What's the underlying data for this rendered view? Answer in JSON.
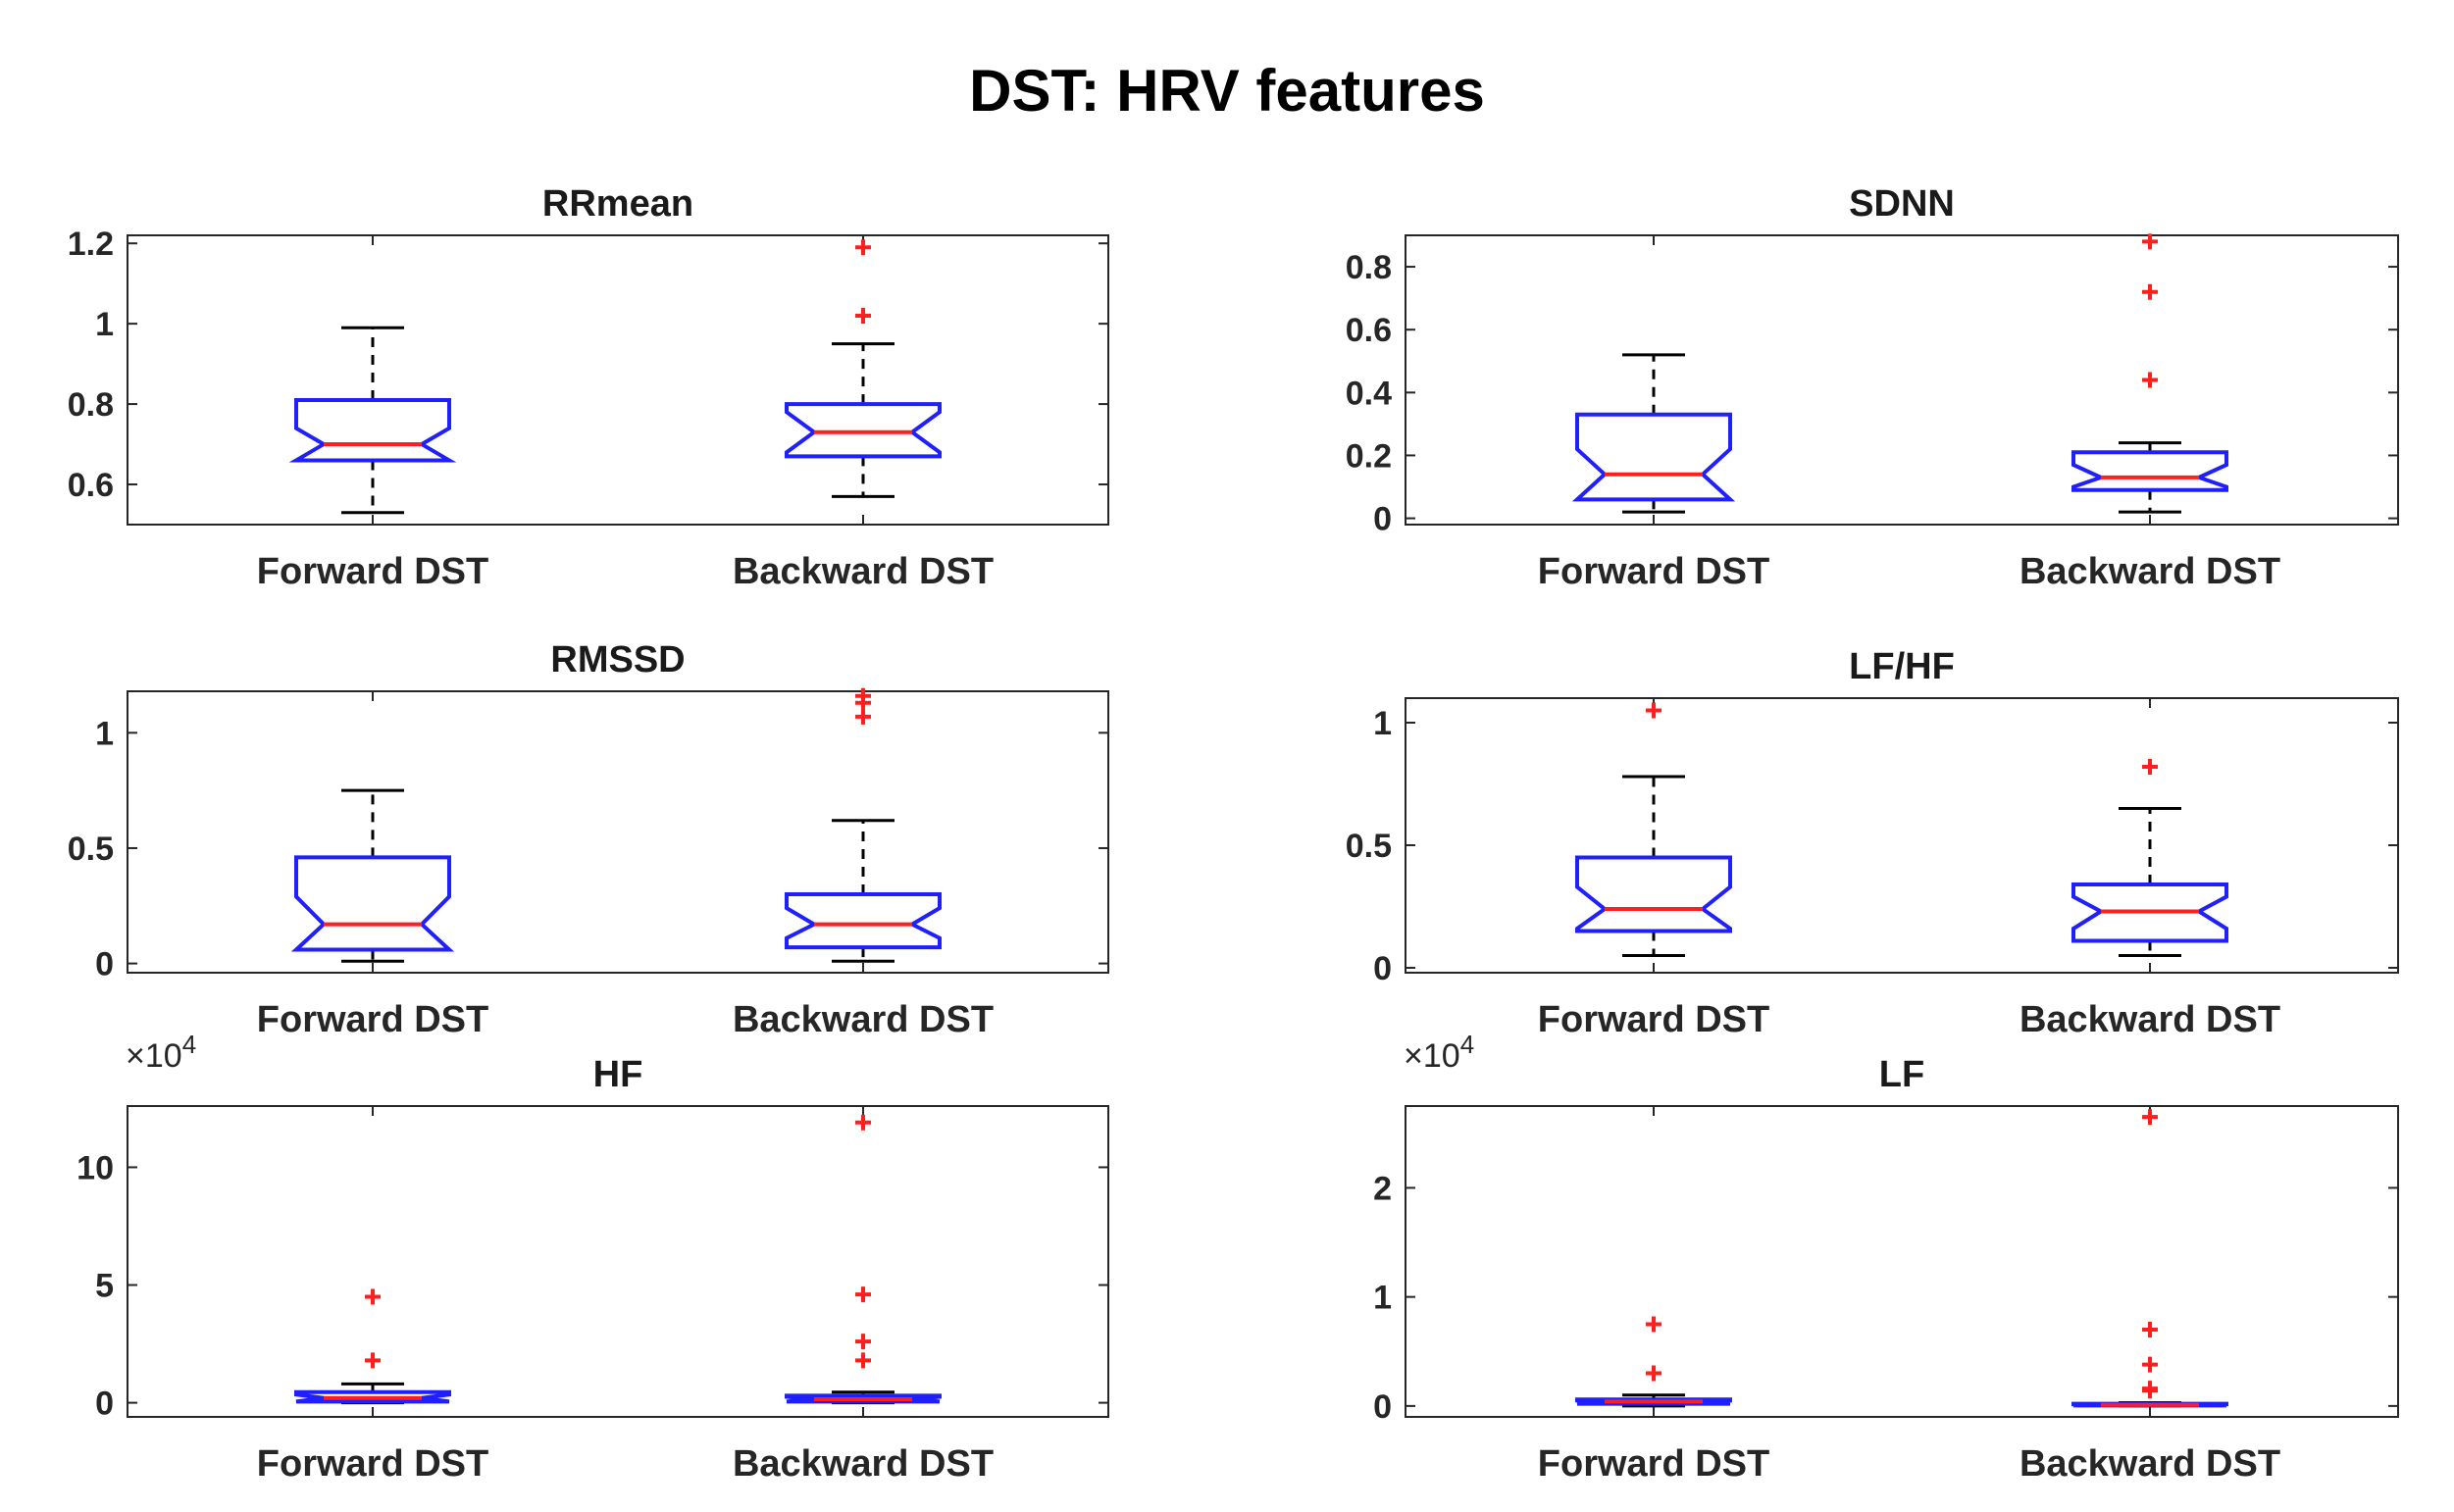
{
  "title": "DST: HRV features",
  "chart_data": [
    {
      "type": "boxplot",
      "title": "RRmean",
      "categories": [
        "Forward DST",
        "Backward DST"
      ],
      "ylim": [
        0.5,
        1.22
      ],
      "yticks": [
        0.6,
        0.8,
        1,
        1.2
      ],
      "ytick_labels": [
        "0.6",
        "0.8",
        "1",
        "1.2"
      ],
      "multiplier": "",
      "boxes": [
        {
          "category": "Forward DST",
          "whisker_low": 0.53,
          "q1": 0.66,
          "median": 0.7,
          "q3": 0.81,
          "whisker_high": 0.99,
          "notch_low": 0.66,
          "notch_high": 0.74,
          "outliers": []
        },
        {
          "category": "Backward DST",
          "whisker_low": 0.57,
          "q1": 0.67,
          "median": 0.73,
          "q3": 0.8,
          "whisker_high": 0.95,
          "notch_low": 0.68,
          "notch_high": 0.78,
          "outliers": [
            1.02,
            1.19
          ]
        }
      ]
    },
    {
      "type": "boxplot",
      "title": "SDNN",
      "categories": [
        "Forward DST",
        "Backward DST"
      ],
      "ylim": [
        -0.02,
        0.9
      ],
      "yticks": [
        0,
        0.2,
        0.4,
        0.6,
        0.8
      ],
      "ytick_labels": [
        "0",
        "0.2",
        "0.4",
        "0.6",
        "0.8"
      ],
      "multiplier": "",
      "boxes": [
        {
          "category": "Forward DST",
          "whisker_low": 0.02,
          "q1": 0.06,
          "median": 0.14,
          "q3": 0.33,
          "whisker_high": 0.52,
          "notch_low": 0.06,
          "notch_high": 0.22,
          "outliers": []
        },
        {
          "category": "Backward DST",
          "whisker_low": 0.02,
          "q1": 0.09,
          "median": 0.13,
          "q3": 0.21,
          "whisker_high": 0.24,
          "notch_low": 0.1,
          "notch_high": 0.17,
          "outliers": [
            0.44,
            0.72,
            0.88
          ]
        }
      ]
    },
    {
      "type": "boxplot",
      "title": "RMSSD",
      "categories": [
        "Forward DST",
        "Backward DST"
      ],
      "ylim": [
        -0.04,
        1.18
      ],
      "yticks": [
        0,
        0.5,
        1
      ],
      "ytick_labels": [
        "0",
        "0.5",
        "1"
      ],
      "multiplier": "",
      "boxes": [
        {
          "category": "Forward DST",
          "whisker_low": 0.01,
          "q1": 0.06,
          "median": 0.17,
          "q3": 0.46,
          "whisker_high": 0.75,
          "notch_low": 0.06,
          "notch_high": 0.29,
          "outliers": []
        },
        {
          "category": "Backward DST",
          "whisker_low": 0.01,
          "q1": 0.07,
          "median": 0.17,
          "q3": 0.3,
          "whisker_high": 0.62,
          "notch_low": 0.11,
          "notch_high": 0.24,
          "outliers": [
            1.07,
            1.13,
            1.16
          ]
        }
      ]
    },
    {
      "type": "boxplot",
      "title": "LF/HF",
      "categories": [
        "Forward DST",
        "Backward DST"
      ],
      "ylim": [
        -0.02,
        1.1
      ],
      "yticks": [
        0,
        0.5,
        1
      ],
      "ytick_labels": [
        "0",
        "0.5",
        "1"
      ],
      "multiplier": "",
      "boxes": [
        {
          "category": "Forward DST",
          "whisker_low": 0.05,
          "q1": 0.15,
          "median": 0.24,
          "q3": 0.45,
          "whisker_high": 0.78,
          "notch_low": 0.16,
          "notch_high": 0.33,
          "outliers": [
            1.05
          ]
        },
        {
          "category": "Backward DST",
          "whisker_low": 0.05,
          "q1": 0.11,
          "median": 0.23,
          "q3": 0.34,
          "whisker_high": 0.65,
          "notch_low": 0.16,
          "notch_high": 0.29,
          "outliers": [
            0.82
          ]
        }
      ]
    },
    {
      "type": "boxplot",
      "title": "HF",
      "categories": [
        "Forward DST",
        "Backward DST"
      ],
      "ylim": [
        -0.6,
        12.6
      ],
      "yticks": [
        0,
        5,
        10
      ],
      "ytick_labels": [
        "0",
        "5",
        "10"
      ],
      "multiplier": "×10",
      "multiplier_exp": "4",
      "boxes": [
        {
          "category": "Forward DST",
          "whisker_low": 0.0,
          "q1": 0.05,
          "median": 0.2,
          "q3": 0.45,
          "whisker_high": 0.8,
          "notch_low": 0.05,
          "notch_high": 0.35,
          "outliers": [
            1.8,
            4.5
          ]
        },
        {
          "category": "Backward DST",
          "whisker_low": 0.0,
          "q1": 0.05,
          "median": 0.15,
          "q3": 0.3,
          "whisker_high": 0.45,
          "notch_low": 0.05,
          "notch_high": 0.25,
          "outliers": [
            1.8,
            2.6,
            4.6,
            11.9
          ]
        }
      ]
    },
    {
      "type": "boxplot",
      "title": "LF",
      "categories": [
        "Forward DST",
        "Backward DST"
      ],
      "ylim": [
        -0.1,
        2.75
      ],
      "yticks": [
        0,
        1,
        2
      ],
      "ytick_labels": [
        "0",
        "1",
        "2"
      ],
      "multiplier": "×10",
      "multiplier_exp": "4",
      "boxes": [
        {
          "category": "Forward DST",
          "whisker_low": 0.0,
          "q1": 0.02,
          "median": 0.04,
          "q3": 0.06,
          "whisker_high": 0.1,
          "notch_low": 0.02,
          "notch_high": 0.05,
          "outliers": [
            0.3,
            0.75
          ]
        },
        {
          "category": "Backward DST",
          "whisker_low": 0.0,
          "q1": 0.005,
          "median": 0.01,
          "q3": 0.02,
          "whisker_high": 0.03,
          "notch_low": 0.005,
          "notch_high": 0.015,
          "outliers": [
            0.14,
            0.16,
            0.38,
            0.7,
            2.65
          ]
        }
      ]
    }
  ]
}
